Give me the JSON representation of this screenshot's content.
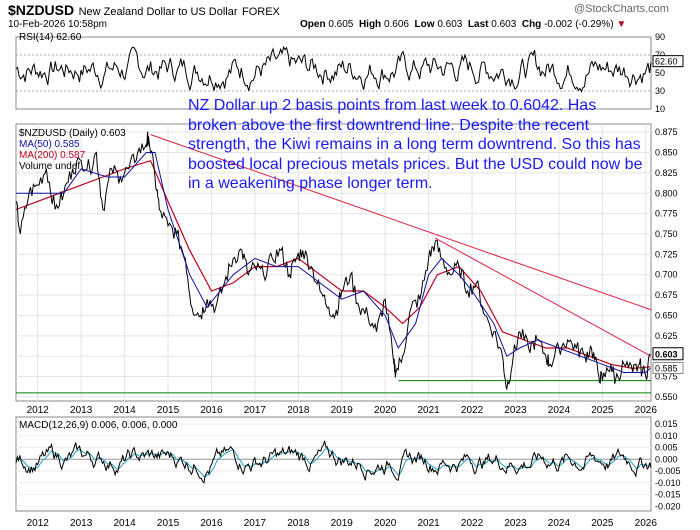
{
  "header": {
    "symbol": "$NZDUSD",
    "name": "New Zealand Dollar to US Dollar",
    "exchange": "FOREX",
    "datetime": "10-Feb-2026 10:58pm",
    "open_label": "Open",
    "open": "0.605",
    "high_label": "High",
    "high": "0.606",
    "low_label": "Low",
    "low": "0.603",
    "last_label": "Last",
    "last": "0.603",
    "chg_label": "Chg",
    "chg": "-0.002 (-0.29%)",
    "brand": "@StockCharts.com"
  },
  "annotation": "NZ Dollar up 2 basis points from last week to 0.6042. Has broken above the first downtrend line. Despite the recent strength, the Kiwi remains in a long term downtrend. So this has boosted local precious metals prices. But the USD could now be in a weakening phase longer term.",
  "colors": {
    "price": "#000000",
    "ma50": "#1010a0",
    "ma200": "#c00020",
    "trendline": "#e02040",
    "support": "#008000",
    "macd_signal": "#20a0c0"
  },
  "chart_data": [
    {
      "type": "line",
      "panel": "RSI",
      "legend": "RSI(14) 62.60",
      "ylim": [
        10,
        90
      ],
      "yticks": [
        10,
        30,
        50,
        70,
        90
      ],
      "reference_lines": [
        30,
        70
      ],
      "last_value": "62.60"
    },
    {
      "type": "line",
      "panel": "price",
      "legend": [
        "$NZDUSD (Daily) 0.603",
        "MA(50) 0.585",
        "MA(200) 0.587",
        "Volume undef"
      ],
      "x_range": [
        2011.5,
        2026.12
      ],
      "xticks": [
        "2012",
        "2013",
        "2014",
        "2015",
        "2016",
        "2017",
        "2018",
        "2019",
        "2020",
        "2021",
        "2022",
        "2023",
        "2024",
        "2025",
        "2026"
      ],
      "ylim": [
        0.545,
        0.885
      ],
      "yticks": [
        "0.550",
        "0.575",
        "0.600",
        "0.625",
        "0.650",
        "0.675",
        "0.700",
        "0.725",
        "0.750",
        "0.775",
        "0.800",
        "0.825",
        "0.850",
        "0.875"
      ],
      "price_tag": "0.603",
      "ma_tag": "0.585",
      "series": [
        {
          "name": "$NZDUSD",
          "x": [
            2011.5,
            2011.6,
            2011.8,
            2012.0,
            2012.2,
            2012.4,
            2012.6,
            2012.8,
            2013.0,
            2013.2,
            2013.35,
            2013.5,
            2013.7,
            2013.9,
            2014.1,
            2014.3,
            2014.5,
            2014.55,
            2014.7,
            2014.8,
            2015.0,
            2015.2,
            2015.4,
            2015.55,
            2015.75,
            2015.9,
            2016.1,
            2016.3,
            2016.5,
            2016.7,
            2016.85,
            2017.0,
            2017.2,
            2017.4,
            2017.6,
            2017.8,
            2017.95,
            2018.1,
            2018.3,
            2018.5,
            2018.7,
            2018.85,
            2019.0,
            2019.2,
            2019.4,
            2019.6,
            2019.8,
            2020.0,
            2020.2,
            2020.25,
            2020.4,
            2020.6,
            2020.8,
            2021.0,
            2021.15,
            2021.3,
            2021.5,
            2021.7,
            2021.9,
            2022.1,
            2022.3,
            2022.5,
            2022.7,
            2022.8,
            2022.95,
            2023.1,
            2023.3,
            2023.5,
            2023.7,
            2023.8,
            2024.0,
            2024.2,
            2024.4,
            2024.6,
            2024.75,
            2024.9,
            2025.0,
            2025.2,
            2025.3,
            2025.5,
            2025.7,
            2025.85,
            2026.0,
            2026.1
          ],
          "y": [
            0.79,
            0.75,
            0.8,
            0.81,
            0.83,
            0.78,
            0.8,
            0.83,
            0.84,
            0.83,
            0.85,
            0.78,
            0.83,
            0.82,
            0.83,
            0.85,
            0.86,
            0.87,
            0.82,
            0.78,
            0.76,
            0.75,
            0.72,
            0.66,
            0.65,
            0.67,
            0.66,
            0.69,
            0.72,
            0.73,
            0.7,
            0.71,
            0.7,
            0.72,
            0.73,
            0.7,
            0.72,
            0.73,
            0.71,
            0.68,
            0.66,
            0.65,
            0.68,
            0.7,
            0.66,
            0.65,
            0.63,
            0.67,
            0.59,
            0.58,
            0.6,
            0.66,
            0.67,
            0.72,
            0.74,
            0.72,
            0.7,
            0.71,
            0.68,
            0.69,
            0.65,
            0.63,
            0.6,
            0.56,
            0.6,
            0.63,
            0.61,
            0.62,
            0.6,
            0.59,
            0.61,
            0.62,
            0.61,
            0.6,
            0.61,
            0.58,
            0.57,
            0.59,
            0.57,
            0.59,
            0.58,
            0.59,
            0.575,
            0.603
          ]
        },
        {
          "name": "MA(50)",
          "x": [
            2011.5,
            2012.0,
            2012.6,
            2013.0,
            2013.6,
            2014.0,
            2014.5,
            2014.7,
            2015.0,
            2015.5,
            2015.9,
            2016.5,
            2017.0,
            2017.5,
            2018.0,
            2018.5,
            2019.0,
            2019.5,
            2020.0,
            2020.3,
            2020.7,
            2021.0,
            2021.3,
            2021.7,
            2022.0,
            2022.5,
            2022.8,
            2023.1,
            2023.5,
            2024.0,
            2024.5,
            2025.0,
            2025.5,
            2026.0,
            2026.1
          ],
          "y": [
            0.8,
            0.8,
            0.8,
            0.83,
            0.82,
            0.82,
            0.85,
            0.85,
            0.78,
            0.7,
            0.66,
            0.7,
            0.72,
            0.71,
            0.71,
            0.69,
            0.67,
            0.68,
            0.65,
            0.61,
            0.64,
            0.7,
            0.72,
            0.7,
            0.68,
            0.64,
            0.6,
            0.61,
            0.62,
            0.61,
            0.6,
            0.59,
            0.58,
            0.58,
            0.585
          ]
        },
        {
          "name": "MA(200)",
          "x": [
            2011.5,
            2012.0,
            2012.5,
            2013.0,
            2013.5,
            2014.0,
            2014.6,
            2015.0,
            2015.5,
            2016.0,
            2016.5,
            2017.0,
            2017.5,
            2018.0,
            2018.5,
            2019.0,
            2019.5,
            2020.0,
            2020.4,
            2020.8,
            2021.2,
            2021.7,
            2022.2,
            2022.7,
            2023.2,
            2023.7,
            2024.2,
            2024.7,
            2025.2,
            2025.7,
            2026.1
          ],
          "y": [
            0.78,
            0.79,
            0.8,
            0.81,
            0.82,
            0.83,
            0.84,
            0.79,
            0.73,
            0.68,
            0.69,
            0.71,
            0.71,
            0.72,
            0.7,
            0.68,
            0.68,
            0.66,
            0.64,
            0.66,
            0.7,
            0.71,
            0.68,
            0.63,
            0.62,
            0.61,
            0.61,
            0.6,
            0.59,
            0.585,
            0.587
          ]
        }
      ],
      "trendlines": [
        {
          "x": [
            2014.6,
            2026.12
          ],
          "y": [
            0.872,
            0.657
          ]
        },
        {
          "x": [
            2021.15,
            2026.12
          ],
          "y": [
            0.745,
            0.6
          ]
        },
        {
          "x": [
            2011.5,
            2026.12
          ],
          "y": [
            0.555,
            0.555
          ]
        },
        {
          "x": [
            2020.3,
            2026.12
          ],
          "y": [
            0.57,
            0.57
          ]
        }
      ]
    },
    {
      "type": "line",
      "panel": "MACD",
      "legend": "MACD(12,26,9) 0.006, 0.006, 0.000",
      "ylim": [
        -0.022,
        0.018
      ],
      "yticks": [
        "0.015",
        "0.010",
        "0.005",
        "0.000",
        "-0.005",
        "-0.010",
        "-0.015",
        "-0.020"
      ]
    }
  ]
}
